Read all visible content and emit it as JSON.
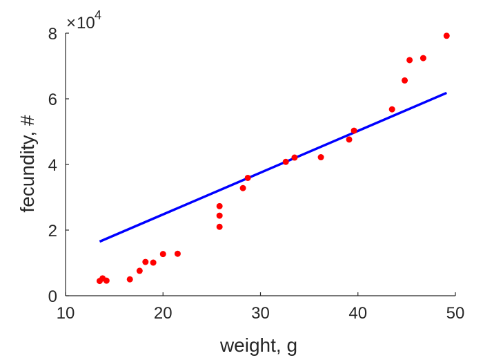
{
  "chart_data": {
    "type": "scatter",
    "xlabel": "weight, g",
    "ylabel": "fecundity, #",
    "xlim": [
      10,
      50
    ],
    "ylim": [
      0,
      80000
    ],
    "xticks": [
      "10",
      "20",
      "30",
      "40",
      "50"
    ],
    "yticks": [
      "0",
      "2",
      "4",
      "6",
      "8"
    ],
    "y_multiplier_label": "×10^4",
    "grid": false,
    "legend": "none",
    "series": [
      {
        "kind": "points",
        "color": "#ff0000",
        "points": [
          [
            13.5,
            4500
          ],
          [
            13.8,
            5300
          ],
          [
            14.2,
            4600
          ],
          [
            16.6,
            5000
          ],
          [
            17.6,
            7600
          ],
          [
            18.2,
            10300
          ],
          [
            19.0,
            10100
          ],
          [
            20.0,
            12700
          ],
          [
            21.5,
            12800
          ],
          [
            25.8,
            27300
          ],
          [
            25.8,
            24400
          ],
          [
            25.8,
            21000
          ],
          [
            28.2,
            32800
          ],
          [
            28.7,
            35900
          ],
          [
            32.6,
            40800
          ],
          [
            33.5,
            42100
          ],
          [
            36.2,
            42200
          ],
          [
            39.1,
            47600
          ],
          [
            39.6,
            50300
          ],
          [
            43.5,
            56800
          ],
          [
            44.8,
            65600
          ],
          [
            45.3,
            71800
          ],
          [
            46.7,
            72400
          ],
          [
            49.1,
            79200
          ]
        ]
      },
      {
        "kind": "line",
        "color": "#0000ff",
        "points": [
          [
            13.5,
            16500
          ],
          [
            49.1,
            61800
          ]
        ]
      }
    ]
  }
}
